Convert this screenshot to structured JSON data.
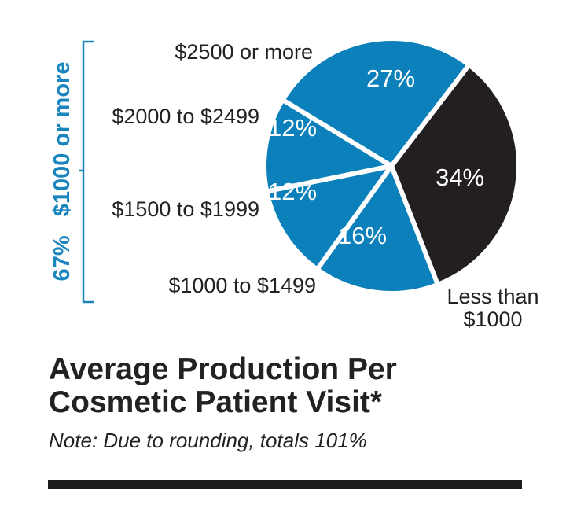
{
  "chart_data": {
    "type": "pie",
    "title": "Average Production Per Cosmetic Patient Visit*",
    "title_lines": [
      "Average Production Per",
      "Cosmetic Patient Visit*"
    ],
    "note": "Note: Due to rounding, totals 101%",
    "slices": [
      {
        "label_lines": [
          "Less than",
          "$1000"
        ],
        "value": 34,
        "value_label": "34%",
        "color": "#231f20"
      },
      {
        "label_lines": [
          "$1000 to $1499"
        ],
        "value": 16,
        "value_label": "16%",
        "color": "#0b80bb"
      },
      {
        "label_lines": [
          "$1500 to $1999"
        ],
        "value": 12,
        "value_label": "12%",
        "color": "#0b80bb"
      },
      {
        "label_lines": [
          "$2000 to $2499"
        ],
        "value": 12,
        "value_label": "12%",
        "color": "#0b80bb"
      },
      {
        "label_lines": [
          "$2500 or more"
        ],
        "value": 27,
        "value_label": "27%",
        "color": "#0b80bb"
      }
    ],
    "bracket": {
      "text": "67%   $1000 or more",
      "color": "#1a84bd"
    },
    "total_percent": 101
  }
}
